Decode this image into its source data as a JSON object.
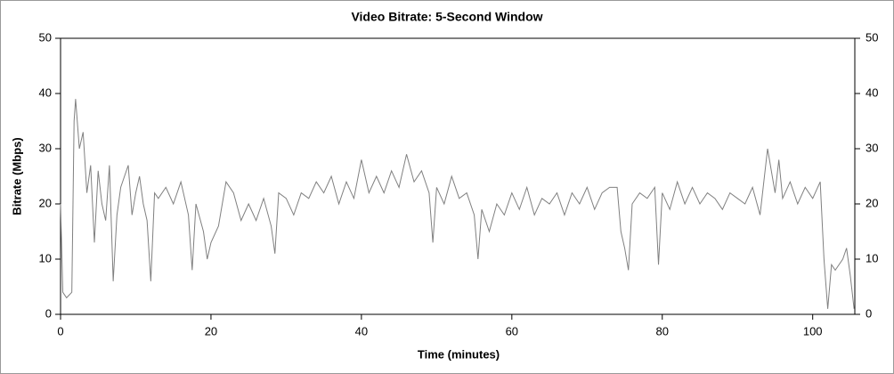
{
  "chart_data": {
    "type": "line",
    "title": "Video Bitrate: 5-Second Window",
    "xlabel": "Time (minutes)",
    "ylabel": "Bitrate (Mbps)",
    "x": [
      0,
      0.3,
      0.8,
      1.5,
      1.8,
      2,
      2.5,
      3,
      3.5,
      4,
      4.5,
      5,
      5.5,
      6,
      6.5,
      7,
      7.5,
      8,
      9,
      9.5,
      10,
      10.5,
      11,
      11.5,
      12,
      12.5,
      13,
      14,
      15,
      16,
      17,
      17.5,
      18,
      19,
      19.5,
      20,
      21,
      22,
      23,
      24,
      25,
      26,
      27,
      28,
      28.5,
      29,
      30,
      31,
      32,
      33,
      34,
      35,
      36,
      37,
      38,
      39,
      40,
      41,
      42,
      43,
      44,
      45,
      46,
      47,
      48,
      49,
      49.5,
      50,
      51,
      52,
      53,
      54,
      55,
      55.5,
      56,
      57,
      58,
      59,
      60,
      61,
      62,
      63,
      64,
      65,
      66,
      67,
      68,
      69,
      70,
      71,
      72,
      73,
      74,
      74.5,
      75,
      75.5,
      76,
      77,
      78,
      79,
      79.5,
      80,
      81,
      82,
      83,
      84,
      85,
      86,
      87,
      88,
      89,
      90,
      91,
      92,
      93,
      94,
      95,
      95.5,
      96,
      97,
      98,
      99,
      100,
      101,
      101.5,
      102,
      102.5,
      103,
      104,
      104.5,
      105,
      105.5
    ],
    "series": [
      {
        "color": "#808080",
        "values": [
          20,
          4,
          3,
          4,
          35,
          39,
          30,
          33,
          22,
          27,
          13,
          26,
          20,
          17,
          27,
          6,
          18,
          23,
          27,
          18,
          22,
          25,
          20,
          17,
          6,
          22,
          21,
          23,
          20,
          24,
          18,
          8,
          20,
          15,
          10,
          13,
          16,
          24,
          22,
          17,
          20,
          17,
          21,
          16,
          11,
          22,
          21,
          18,
          22,
          21,
          24,
          22,
          25,
          20,
          24,
          21,
          28,
          22,
          25,
          22,
          26,
          23,
          29,
          24,
          26,
          22,
          13,
          23,
          20,
          25,
          21,
          22,
          18,
          10,
          19,
          15,
          20,
          18,
          22,
          19,
          23,
          18,
          21,
          20,
          22,
          18,
          22,
          20,
          23,
          19,
          22,
          23,
          23,
          15,
          12,
          8,
          20,
          22,
          21,
          23,
          9,
          22,
          19,
          24,
          20,
          23,
          20,
          22,
          21,
          19,
          22,
          21,
          20,
          23,
          18,
          30,
          22,
          28,
          21,
          24,
          20,
          23,
          21,
          24,
          10,
          1,
          9,
          8,
          10,
          12,
          7,
          1
        ]
      }
    ],
    "xlim": [
      0,
      105.6
    ],
    "xticks": [
      0,
      20,
      40,
      60,
      80,
      100
    ],
    "ylim": [
      0,
      50
    ],
    "yticks": [
      0,
      10,
      20,
      30,
      40,
      50
    ],
    "y2lim": [
      0,
      50
    ],
    "y2ticks": [
      0,
      10,
      20,
      30,
      40,
      50
    ]
  }
}
